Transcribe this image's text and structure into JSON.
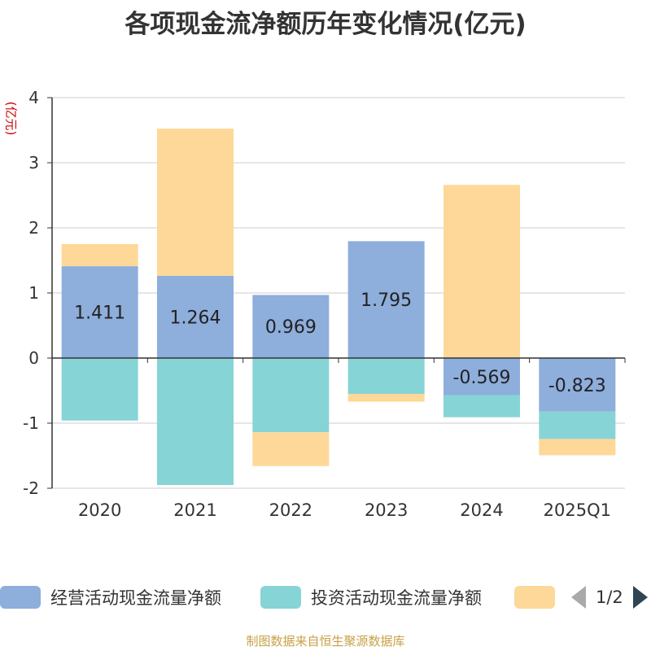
{
  "title": "各项现金流净额历年变化情况(亿元)",
  "unit_label": "(亿元)",
  "source_note": "制图数据来自恒生聚源数据库",
  "legend": {
    "items": [
      {
        "label": "经营活动现金流量净额",
        "color": "#8eaedc"
      },
      {
        "label": "投资活动现金流量净额",
        "color": "#86d4d6"
      },
      {
        "label": "",
        "color": "#fed898"
      }
    ],
    "page_text": "1/2"
  },
  "chart_data": {
    "type": "bar",
    "stacked": true,
    "categories": [
      "2020",
      "2021",
      "2022",
      "2023",
      "2024",
      "2025Q1"
    ],
    "ylim": [
      -2,
      4
    ],
    "yticks": [
      -2,
      -1,
      0,
      1,
      2,
      3,
      4
    ],
    "grid": true,
    "legend_position": "bottom",
    "series": [
      {
        "name": "经营活动现金流量净额",
        "color": "#8eaedc",
        "values": [
          1.411,
          1.264,
          0.969,
          1.795,
          -0.569,
          -0.823
        ],
        "labels": [
          "1.411",
          "1.264",
          "0.969",
          "1.795",
          "-0.569",
          "-0.823"
        ]
      },
      {
        "name": "投资活动现金流量净额",
        "color": "#86d4d6",
        "values": [
          -0.96,
          -1.95,
          -1.14,
          -0.55,
          -0.34,
          -0.42
        ]
      },
      {
        "color": "#fed898",
        "values": [
          0.34,
          2.26,
          -0.52,
          -0.12,
          2.66,
          -0.25
        ]
      }
    ]
  }
}
